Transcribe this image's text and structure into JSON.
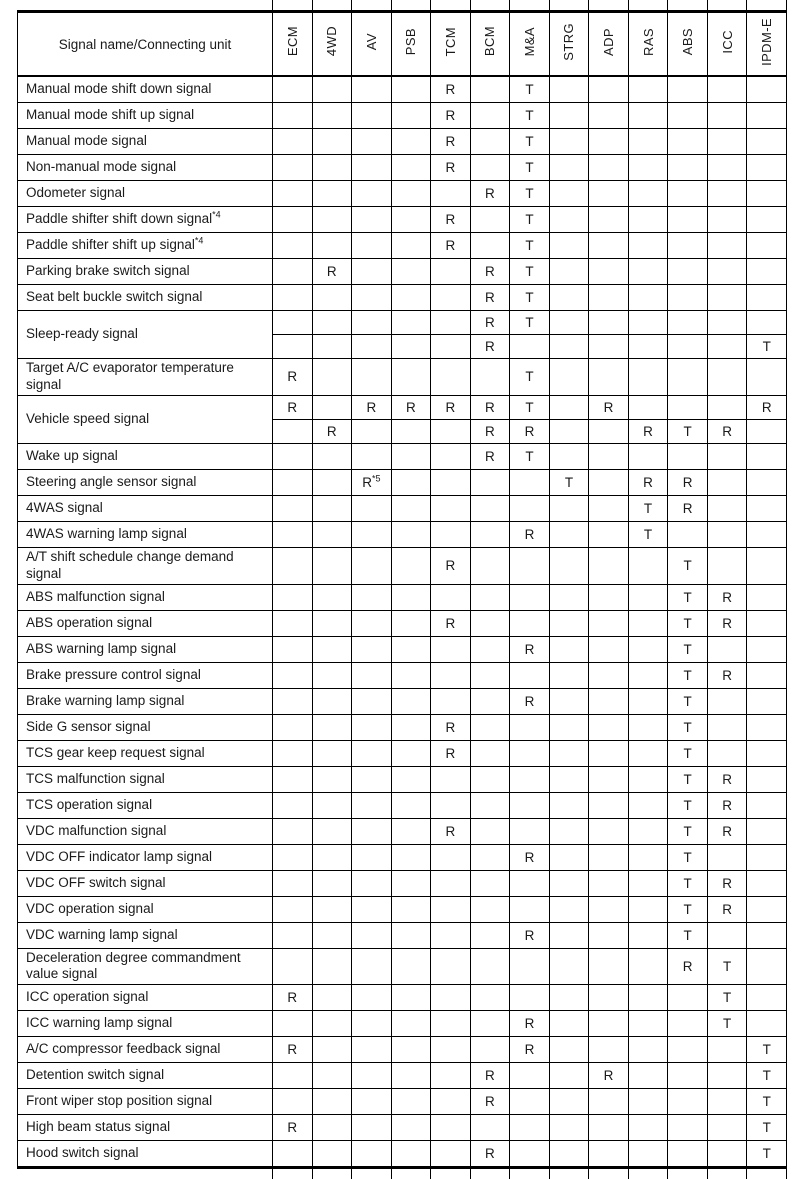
{
  "colors": {
    "border": "#000000",
    "text": "#1a1a1a",
    "background": "#ffffff"
  },
  "table": {
    "signal_col_header": "Signal name/Connecting unit",
    "units": [
      "ECM",
      "4WD",
      "AV",
      "PSB",
      "TCM",
      "BCM",
      "M&A",
      "STRG",
      "ADP",
      "RAS",
      "ABS",
      "ICC",
      "IPDM-E"
    ],
    "legend_values": [
      "R",
      "T"
    ],
    "rows": [
      {
        "signal": "Manual mode shift down signal",
        "subrows": [
          [
            "",
            "",
            "",
            "",
            "R",
            "",
            "T",
            "",
            "",
            "",
            "",
            "",
            ""
          ]
        ]
      },
      {
        "signal": "Manual mode shift up signal",
        "subrows": [
          [
            "",
            "",
            "",
            "",
            "R",
            "",
            "T",
            "",
            "",
            "",
            "",
            "",
            ""
          ]
        ]
      },
      {
        "signal": "Manual mode signal",
        "subrows": [
          [
            "",
            "",
            "",
            "",
            "R",
            "",
            "T",
            "",
            "",
            "",
            "",
            "",
            ""
          ]
        ]
      },
      {
        "signal": "Non-manual mode signal",
        "subrows": [
          [
            "",
            "",
            "",
            "",
            "R",
            "",
            "T",
            "",
            "",
            "",
            "",
            "",
            ""
          ]
        ]
      },
      {
        "signal": "Odometer signal",
        "subrows": [
          [
            "",
            "",
            "",
            "",
            "",
            "R",
            "T",
            "",
            "",
            "",
            "",
            "",
            ""
          ]
        ]
      },
      {
        "signal": "Paddle shifter shift down signal",
        "sup": "*4",
        "subrows": [
          [
            "",
            "",
            "",
            "",
            "R",
            "",
            "T",
            "",
            "",
            "",
            "",
            "",
            ""
          ]
        ]
      },
      {
        "signal": "Paddle shifter shift up signal",
        "sup": "*4",
        "subrows": [
          [
            "",
            "",
            "",
            "",
            "R",
            "",
            "T",
            "",
            "",
            "",
            "",
            "",
            ""
          ]
        ]
      },
      {
        "signal": "Parking brake switch signal",
        "subrows": [
          [
            "",
            "R",
            "",
            "",
            "",
            "R",
            "T",
            "",
            "",
            "",
            "",
            "",
            ""
          ]
        ]
      },
      {
        "signal": "Seat belt buckle switch signal",
        "subrows": [
          [
            "",
            "",
            "",
            "",
            "",
            "R",
            "T",
            "",
            "",
            "",
            "",
            "",
            ""
          ]
        ]
      },
      {
        "signal": "Sleep-ready signal",
        "subrows": [
          [
            "",
            "",
            "",
            "",
            "",
            "R",
            "T",
            "",
            "",
            "",
            "",
            "",
            ""
          ],
          [
            "",
            "",
            "",
            "",
            "",
            "R",
            "",
            "",
            "",
            "",
            "",
            "",
            "T"
          ]
        ]
      },
      {
        "signal": "Target A/C evaporator temperature signal",
        "subrows": [
          [
            "R",
            "",
            "",
            "",
            "",
            "",
            "T",
            "",
            "",
            "",
            "",
            "",
            ""
          ]
        ]
      },
      {
        "signal": "Vehicle speed signal",
        "subrows": [
          [
            "R",
            "",
            "R",
            "R",
            "R",
            "R",
            "T",
            "",
            "R",
            "",
            "",
            "",
            "R"
          ],
          [
            "",
            "R",
            "",
            "",
            "",
            "R",
            "R",
            "",
            "",
            "R",
            "T",
            "R",
            ""
          ]
        ]
      },
      {
        "signal": "Wake up signal",
        "subrows": [
          [
            "",
            "",
            "",
            "",
            "",
            "R",
            "T",
            "",
            "",
            "",
            "",
            "",
            ""
          ]
        ]
      },
      {
        "signal": "Steering angle sensor signal",
        "subrows": [
          [
            "",
            "",
            "R*5",
            "",
            "",
            "",
            "",
            "T",
            "",
            "R",
            "R",
            "",
            ""
          ]
        ]
      },
      {
        "signal": "4WAS signal",
        "subrows": [
          [
            "",
            "",
            "",
            "",
            "",
            "",
            "",
            "",
            "",
            "T",
            "R",
            "",
            ""
          ]
        ]
      },
      {
        "signal": "4WAS warning lamp signal",
        "subrows": [
          [
            "",
            "",
            "",
            "",
            "",
            "",
            "R",
            "",
            "",
            "T",
            "",
            "",
            ""
          ]
        ]
      },
      {
        "signal": "A/T shift schedule change demand signal",
        "subrows": [
          [
            "",
            "",
            "",
            "",
            "R",
            "",
            "",
            "",
            "",
            "",
            "T",
            "",
            ""
          ]
        ]
      },
      {
        "signal": "ABS malfunction signal",
        "subrows": [
          [
            "",
            "",
            "",
            "",
            "",
            "",
            "",
            "",
            "",
            "",
            "T",
            "R",
            ""
          ]
        ]
      },
      {
        "signal": "ABS operation signal",
        "subrows": [
          [
            "",
            "",
            "",
            "",
            "R",
            "",
            "",
            "",
            "",
            "",
            "T",
            "R",
            ""
          ]
        ]
      },
      {
        "signal": "ABS warning lamp signal",
        "subrows": [
          [
            "",
            "",
            "",
            "",
            "",
            "",
            "R",
            "",
            "",
            "",
            "T",
            "",
            ""
          ]
        ]
      },
      {
        "signal": "Brake pressure control signal",
        "subrows": [
          [
            "",
            "",
            "",
            "",
            "",
            "",
            "",
            "",
            "",
            "",
            "T",
            "R",
            ""
          ]
        ]
      },
      {
        "signal": "Brake warning lamp signal",
        "subrows": [
          [
            "",
            "",
            "",
            "",
            "",
            "",
            "R",
            "",
            "",
            "",
            "T",
            "",
            ""
          ]
        ]
      },
      {
        "signal": "Side G sensor signal",
        "subrows": [
          [
            "",
            "",
            "",
            "",
            "R",
            "",
            "",
            "",
            "",
            "",
            "T",
            "",
            ""
          ]
        ]
      },
      {
        "signal": "TCS gear keep request signal",
        "subrows": [
          [
            "",
            "",
            "",
            "",
            "R",
            "",
            "",
            "",
            "",
            "",
            "T",
            "",
            ""
          ]
        ]
      },
      {
        "signal": "TCS malfunction signal",
        "subrows": [
          [
            "",
            "",
            "",
            "",
            "",
            "",
            "",
            "",
            "",
            "",
            "T",
            "R",
            ""
          ]
        ]
      },
      {
        "signal": "TCS operation signal",
        "subrows": [
          [
            "",
            "",
            "",
            "",
            "",
            "",
            "",
            "",
            "",
            "",
            "T",
            "R",
            ""
          ]
        ]
      },
      {
        "signal": "VDC malfunction signal",
        "subrows": [
          [
            "",
            "",
            "",
            "",
            "R",
            "",
            "",
            "",
            "",
            "",
            "T",
            "R",
            ""
          ]
        ]
      },
      {
        "signal": "VDC OFF indicator lamp signal",
        "subrows": [
          [
            "",
            "",
            "",
            "",
            "",
            "",
            "R",
            "",
            "",
            "",
            "T",
            "",
            ""
          ]
        ]
      },
      {
        "signal": "VDC OFF switch signal",
        "subrows": [
          [
            "",
            "",
            "",
            "",
            "",
            "",
            "",
            "",
            "",
            "",
            "T",
            "R",
            ""
          ]
        ]
      },
      {
        "signal": "VDC operation signal",
        "subrows": [
          [
            "",
            "",
            "",
            "",
            "",
            "",
            "",
            "",
            "",
            "",
            "T",
            "R",
            ""
          ]
        ]
      },
      {
        "signal": "VDC warning lamp signal",
        "subrows": [
          [
            "",
            "",
            "",
            "",
            "",
            "",
            "R",
            "",
            "",
            "",
            "T",
            "",
            ""
          ]
        ]
      },
      {
        "signal": "Deceleration degree commandment value signal",
        "subrows": [
          [
            "",
            "",
            "",
            "",
            "",
            "",
            "",
            "",
            "",
            "",
            "R",
            "T",
            ""
          ]
        ]
      },
      {
        "signal": "ICC operation signal",
        "subrows": [
          [
            "R",
            "",
            "",
            "",
            "",
            "",
            "",
            "",
            "",
            "",
            "",
            "T",
            ""
          ]
        ]
      },
      {
        "signal": "ICC warning lamp signal",
        "subrows": [
          [
            "",
            "",
            "",
            "",
            "",
            "",
            "R",
            "",
            "",
            "",
            "",
            "T",
            ""
          ]
        ]
      },
      {
        "signal": "A/C compressor feedback signal",
        "subrows": [
          [
            "R",
            "",
            "",
            "",
            "",
            "",
            "R",
            "",
            "",
            "",
            "",
            "",
            "T"
          ]
        ]
      },
      {
        "signal": "Detention switch signal",
        "subrows": [
          [
            "",
            "",
            "",
            "",
            "",
            "R",
            "",
            "",
            "R",
            "",
            "",
            "",
            "T"
          ]
        ]
      },
      {
        "signal": "Front wiper stop position signal",
        "subrows": [
          [
            "",
            "",
            "",
            "",
            "",
            "R",
            "",
            "",
            "",
            "",
            "",
            "",
            "T"
          ]
        ]
      },
      {
        "signal": "High beam status signal",
        "subrows": [
          [
            "R",
            "",
            "",
            "",
            "",
            "",
            "",
            "",
            "",
            "",
            "",
            "",
            "T"
          ]
        ]
      },
      {
        "signal": "Hood switch signal",
        "subrows": [
          [
            "",
            "",
            "",
            "",
            "",
            "R",
            "",
            "",
            "",
            "",
            "",
            "",
            "T"
          ]
        ]
      }
    ]
  }
}
